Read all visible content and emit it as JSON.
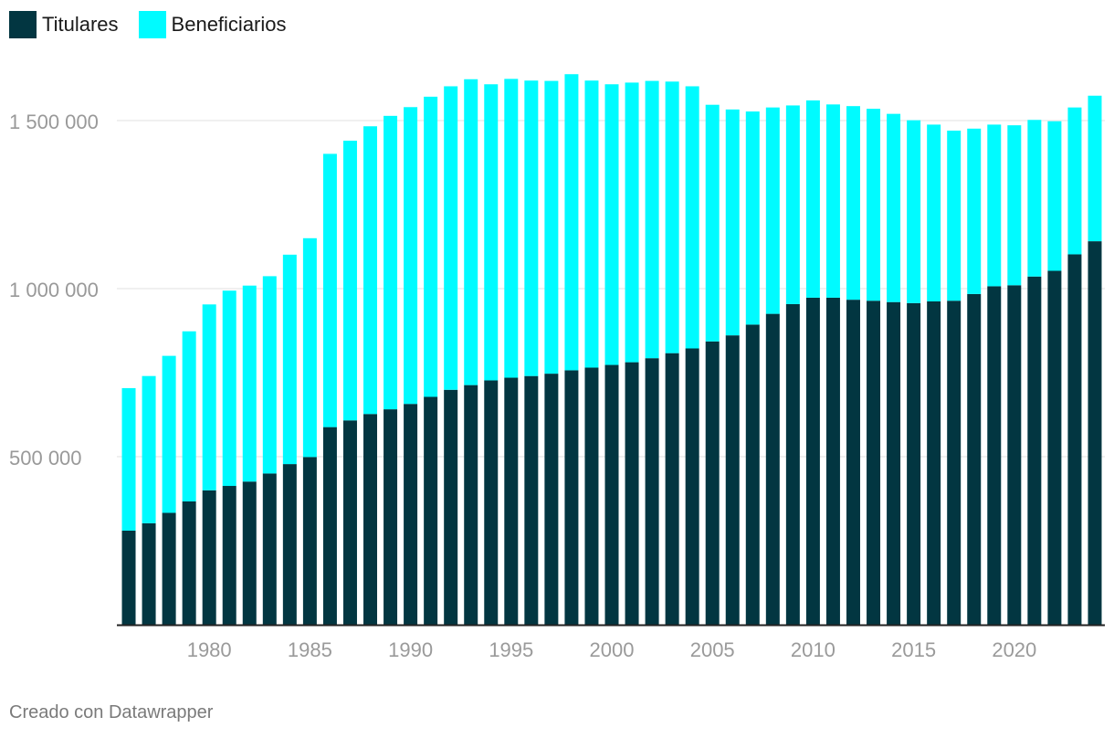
{
  "colors": {
    "titulares": "#023641",
    "beneficiarios": "#00fbff",
    "grid": "#e2e2e2",
    "tick": "#999999"
  },
  "footer": {
    "credit": "Creado con Datawrapper"
  },
  "chart_data": {
    "type": "bar",
    "stacked": true,
    "legend_position": "top-left",
    "grid": true,
    "ylim": [
      0,
      1650000
    ],
    "yticks": [
      {
        "value": 500000,
        "label": "500 000"
      },
      {
        "value": 1000000,
        "label": "1 000 000"
      },
      {
        "value": 1500000,
        "label": "1 500 000"
      }
    ],
    "xtick_labels": [
      "1980",
      "1985",
      "1990",
      "1995",
      "2000",
      "2005",
      "2010",
      "2015",
      "2020"
    ],
    "categories": [
      "1976",
      "1977",
      "1978",
      "1979",
      "1980",
      "1981",
      "1982",
      "1983",
      "1984",
      "1985",
      "1986",
      "1987",
      "1988",
      "1989",
      "1990",
      "1991",
      "1992",
      "1993",
      "1994",
      "1995",
      "1996",
      "1997",
      "1998",
      "1999",
      "2000",
      "2001",
      "2002",
      "2003",
      "2004",
      "2005",
      "2006",
      "2007",
      "2008",
      "2009",
      "2010",
      "2011",
      "2012",
      "2013",
      "2014",
      "2015",
      "2016",
      "2017",
      "2018",
      "2019",
      "2020",
      "2021",
      "2022",
      "2023",
      "2024"
    ],
    "series": [
      {
        "name": "Titulares",
        "values": [
          280000,
          302000,
          333000,
          367000,
          400000,
          413000,
          426000,
          450000,
          478000,
          499000,
          588000,
          608000,
          627000,
          641000,
          657000,
          678000,
          699000,
          713000,
          727000,
          735000,
          740000,
          747000,
          757000,
          765000,
          773000,
          781000,
          793000,
          808000,
          822000,
          843000,
          861000,
          893000,
          925000,
          954000,
          973000,
          973000,
          967000,
          964000,
          960000,
          957000,
          962000,
          964000,
          984000,
          1007000,
          1010000,
          1036000,
          1053000,
          1102000,
          1141000
        ]
      },
      {
        "name": "Beneficiarios",
        "values": [
          424000,
          438000,
          467000,
          506000,
          553000,
          581000,
          583000,
          587000,
          623000,
          651000,
          813000,
          832000,
          856000,
          873000,
          883000,
          893000,
          903000,
          910000,
          881000,
          889000,
          879000,
          871000,
          881000,
          854000,
          835000,
          832000,
          825000,
          808000,
          780000,
          704000,
          672000,
          634000,
          614000,
          591000,
          587000,
          575000,
          576000,
          571000,
          560000,
          544000,
          526000,
          506000,
          492000,
          481000,
          476000,
          466000,
          445000,
          437000,
          433000
        ]
      }
    ]
  }
}
